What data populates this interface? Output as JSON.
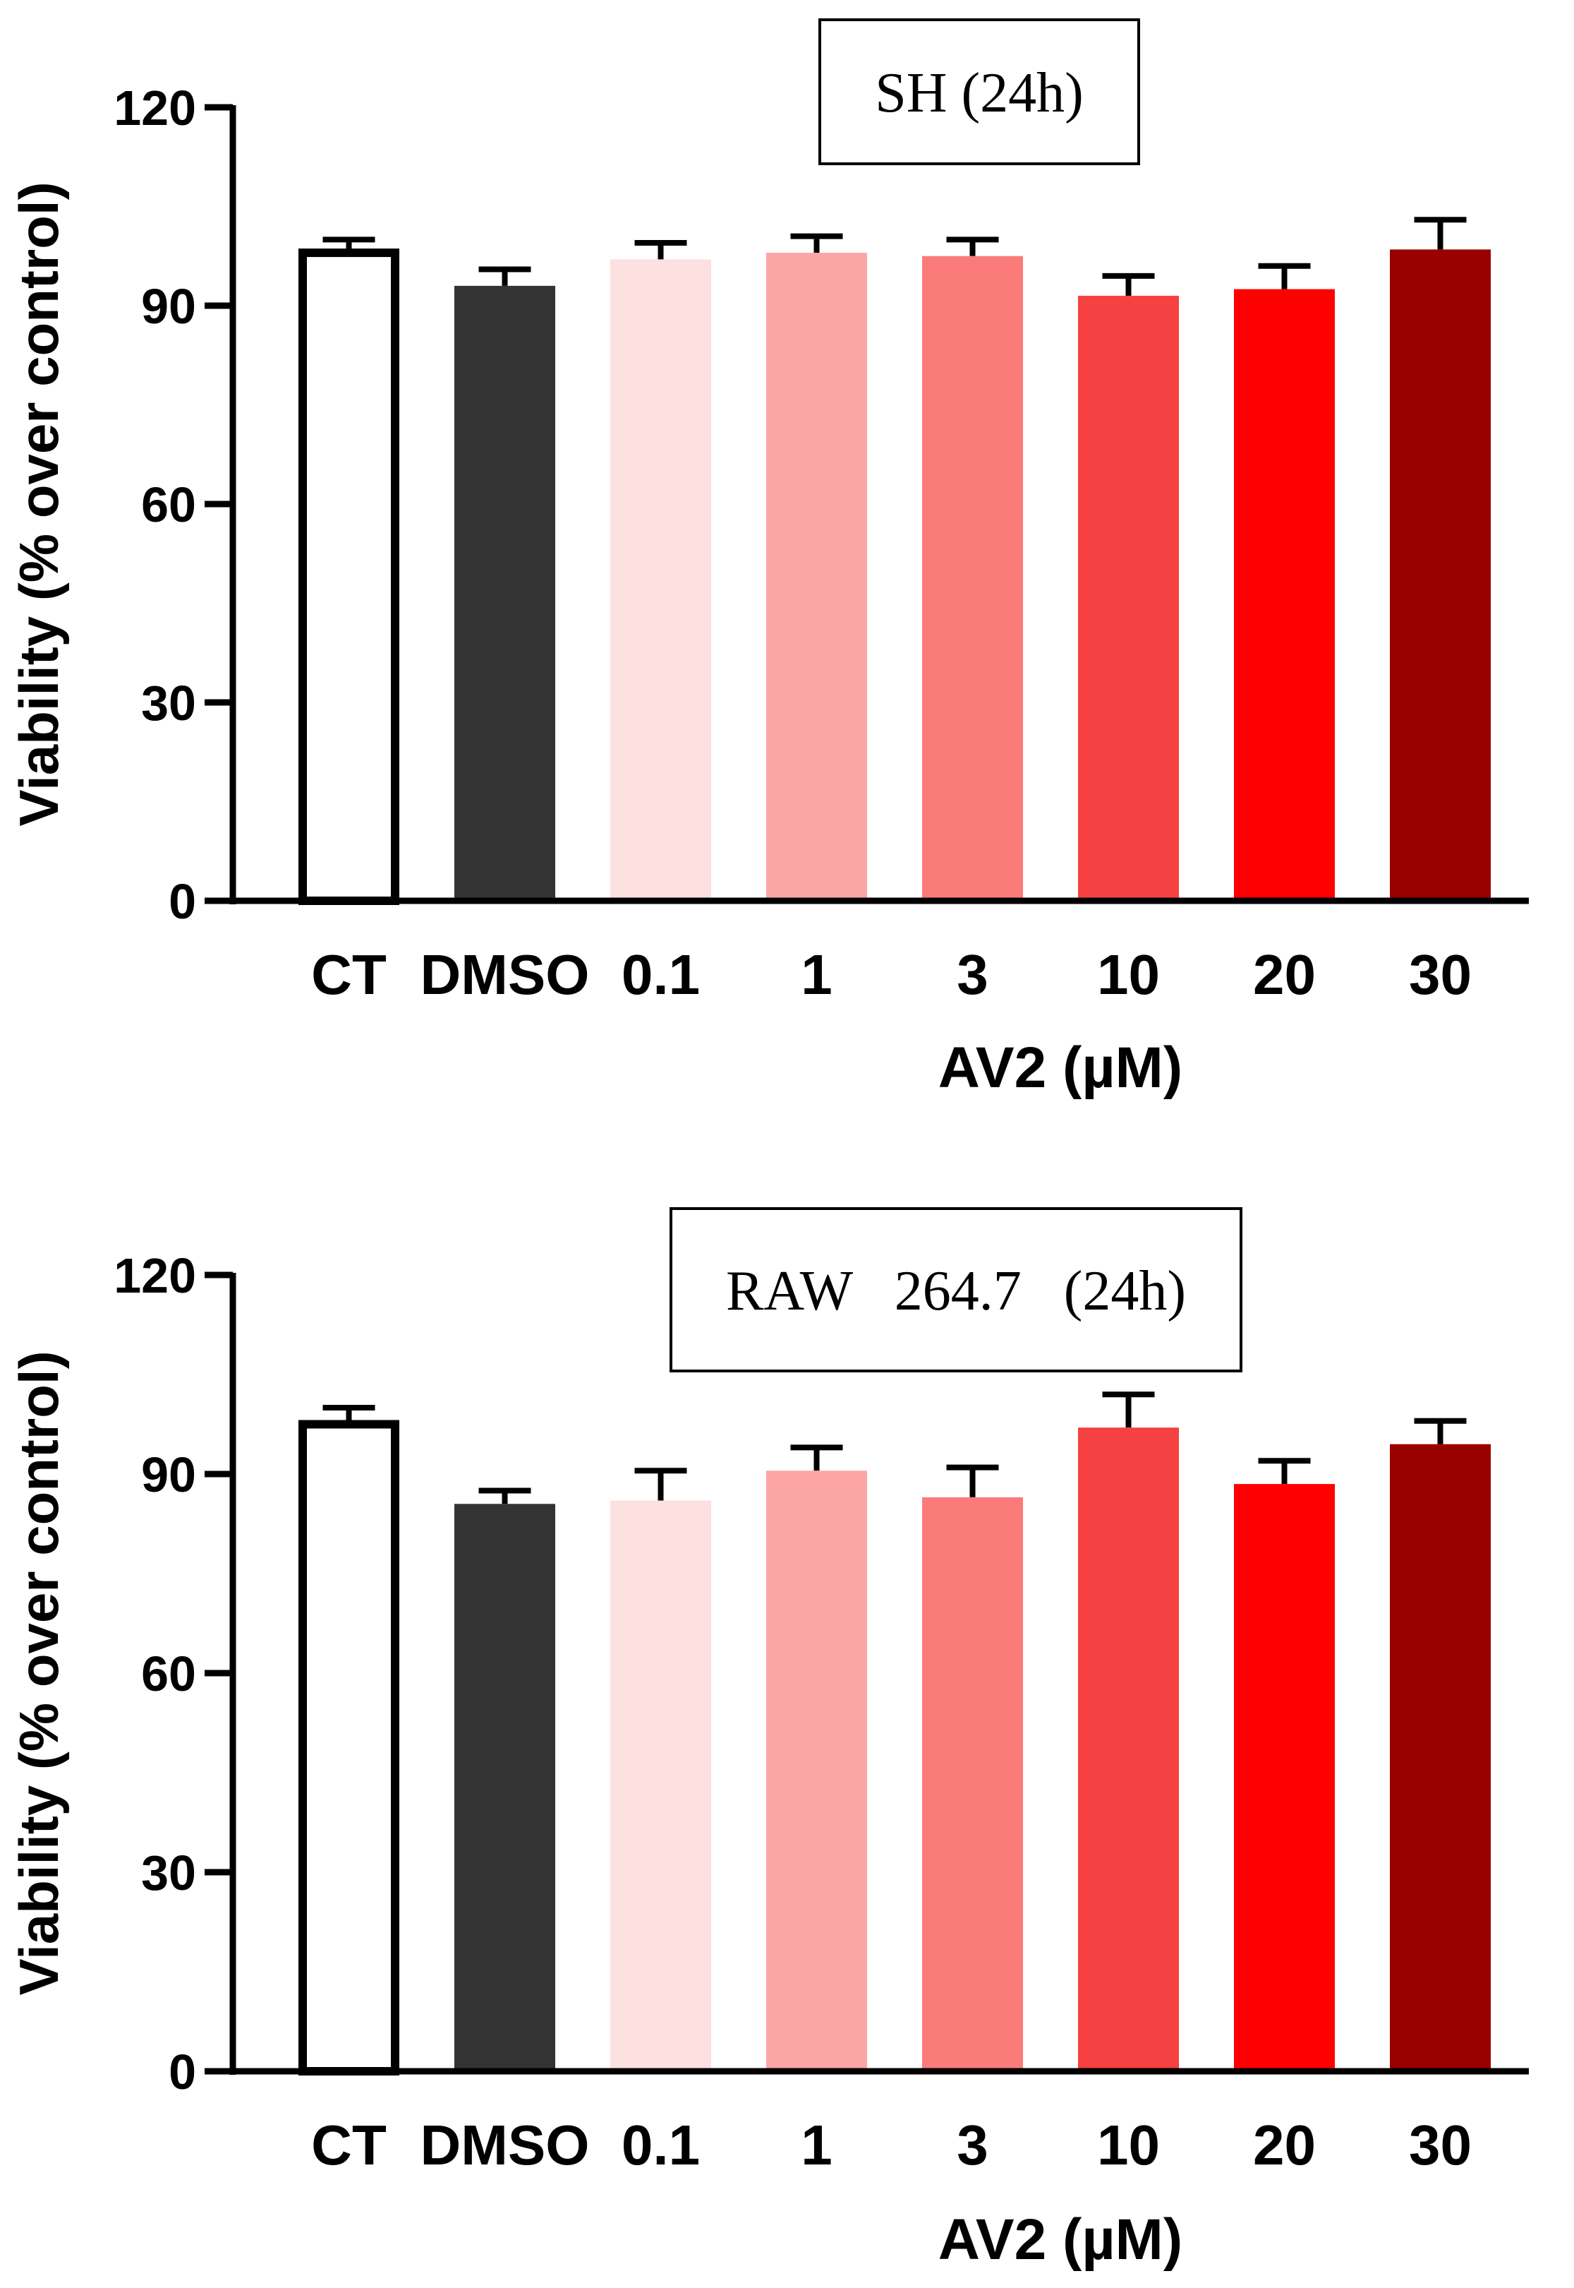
{
  "chart_data": [
    {
      "type": "bar",
      "title": "SH (24h)",
      "xlabel": "AV2 (µM)",
      "ylabel": "Viability (% over control)",
      "ylim": [
        0,
        120
      ],
      "yticks": [
        0,
        30,
        60,
        90,
        120
      ],
      "categories": [
        "CT",
        "DMSO",
        "0.1",
        "1",
        "3",
        "10",
        "20",
        "30"
      ],
      "values": [
        98,
        93,
        97,
        98,
        97.5,
        91.5,
        92.5,
        98.5
      ],
      "errors": [
        2,
        2.5,
        2.5,
        2.5,
        2.5,
        3,
        3.5,
        4.5
      ],
      "colors": [
        "#ffffff",
        "#333333",
        "#fde0e0",
        "#fca5a5",
        "#fb7b7b",
        "#f54141",
        "#ff0000",
        "#990000"
      ]
    },
    {
      "type": "bar",
      "title": "RAW   264.7   (24h)",
      "xlabel": "AV2 (µM)",
      "ylabel": "Viability (% over control)",
      "ylim": [
        0,
        120
      ],
      "yticks": [
        0,
        30,
        60,
        90,
        120
      ],
      "categories": [
        "CT",
        "DMSO",
        "0.1",
        "1",
        "3",
        "10",
        "20",
        "30"
      ],
      "values": [
        97.5,
        85.5,
        86,
        90.5,
        86.5,
        97,
        88.5,
        94.5
      ],
      "errors": [
        2.5,
        2,
        4.5,
        3.5,
        4.5,
        5,
        3.5,
        3.5
      ],
      "colors": [
        "#ffffff",
        "#333333",
        "#fde0e0",
        "#fca5a5",
        "#fb7b7b",
        "#f54141",
        "#ff0000",
        "#990000"
      ]
    }
  ]
}
